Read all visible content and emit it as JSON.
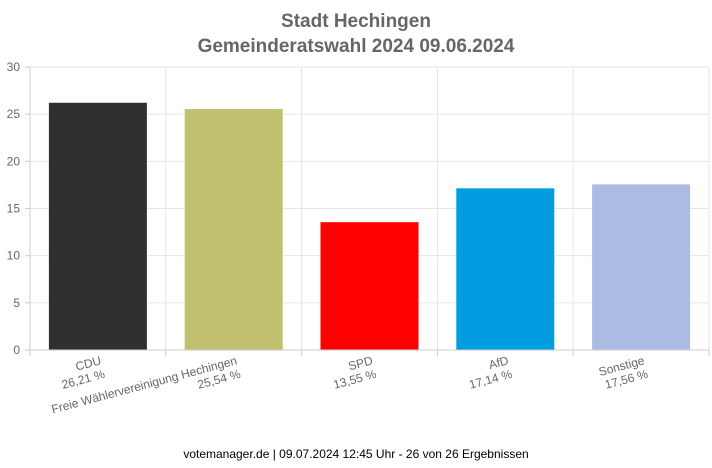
{
  "chart_data": {
    "type": "bar",
    "title": [
      "Stadt Hechingen",
      "Gemeinderatswahl 2024 09.06.2024"
    ],
    "categories": [
      "CDU",
      "Freie Wählervereinigung Hechingen",
      "SPD",
      "AfD",
      "Sonstige"
    ],
    "value_labels": [
      "26,21 %",
      "25,54 %",
      "13,55 %",
      "17,14 %",
      "17,56 %"
    ],
    "values": [
      26.21,
      25.54,
      13.55,
      17.14,
      17.56
    ],
    "colors": [
      "#32302e",
      "#c0c06e",
      "#ff0000",
      "#009ee0",
      "#abbbe3"
    ],
    "ylim": [
      0,
      30
    ],
    "yticks": [
      0,
      5,
      10,
      15,
      20,
      25,
      30
    ],
    "grid": true,
    "legend": "none",
    "xlabel": "",
    "ylabel": ""
  },
  "footer": "votemanager.de | 09.07.2024 12:45 Uhr - 26 von 26 Ergebnissen"
}
